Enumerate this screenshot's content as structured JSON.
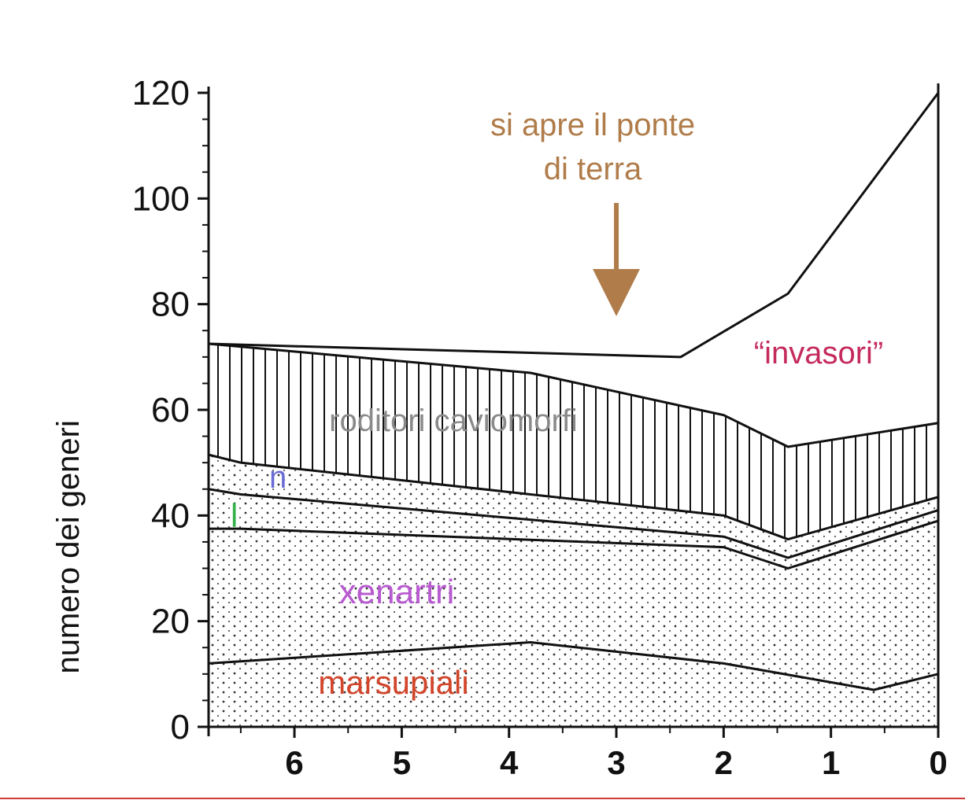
{
  "chart_data": {
    "type": "area",
    "ylabel": "numero dei generi",
    "xlabel": "",
    "x_reversed": true,
    "xlim": [
      6.8,
      0
    ],
    "ylim": [
      0,
      120
    ],
    "x_ticks": [
      6,
      5,
      4,
      3,
      2,
      1,
      0
    ],
    "y_ticks": [
      0,
      20,
      40,
      60,
      80,
      100,
      120
    ],
    "grid": false,
    "boundaries": [
      {
        "name": "marsupiali",
        "x": [
          6.8,
          3.8,
          2,
          0.6,
          0
        ],
        "y": [
          12,
          16,
          12,
          7,
          10
        ]
      },
      {
        "name": "xenartri",
        "x": [
          6.8,
          6.5,
          2,
          1.4,
          0
        ],
        "y": [
          37.5,
          37.5,
          34,
          30,
          39
        ]
      },
      {
        "name": "l",
        "x": [
          6.8,
          6.5,
          2,
          1.4,
          0
        ],
        "y": [
          45,
          44,
          36,
          32,
          41
        ]
      },
      {
        "name": "n",
        "x": [
          6.8,
          6.5,
          2,
          1.4,
          0
        ],
        "y": [
          51.5,
          50,
          40,
          35.5,
          43.5
        ]
      },
      {
        "name": "roditori caviomorfi",
        "x": [
          6.8,
          3.8,
          2,
          1.4,
          0
        ],
        "y": [
          72.5,
          67,
          59,
          53,
          57.5
        ]
      },
      {
        "name": "invasori",
        "x": [
          6.8,
          2.4,
          1.4,
          0
        ],
        "y": [
          72.5,
          70,
          82,
          120
        ]
      }
    ],
    "annotations": {
      "event_lines": [
        "si apre il ponte",
        "di terra"
      ],
      "event_x": 3,
      "invasori": "“invasori”",
      "roditori": "roditori caviomorfi",
      "n": "n",
      "l": "l",
      "xenartri": "xenartri",
      "marsupiali": "marsupiali"
    },
    "colors": {
      "event": "#b07c4a",
      "invasori": "#c42a5b",
      "roditori": "#8a8a8a",
      "n": "#6b6bd6",
      "l": "#32b24a",
      "xenartri": "#b85bd0",
      "marsupiali": "#d2452b",
      "ink": "#111111"
    }
  }
}
